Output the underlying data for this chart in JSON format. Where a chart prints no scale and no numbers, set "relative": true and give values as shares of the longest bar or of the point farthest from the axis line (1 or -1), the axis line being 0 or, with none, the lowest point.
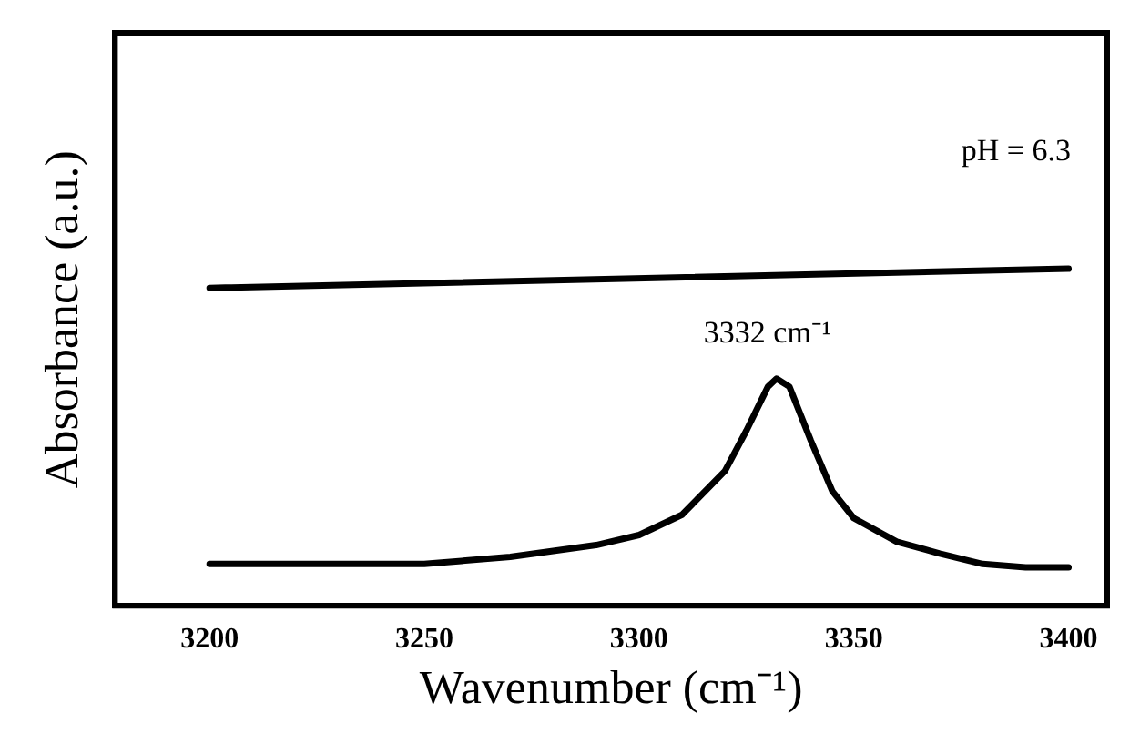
{
  "chart_data": {
    "type": "line",
    "xlabel": "Wavenumber (cm⁻¹)",
    "ylabel": "Absorbance (a.u.)",
    "relative": true,
    "xlim": [
      3178,
      3409
    ],
    "xticks": [
      3200,
      3250,
      3300,
      3350,
      3400
    ],
    "grid": false,
    "legend": false,
    "marker": "none",
    "line_style": "solid",
    "annotations": [
      "pH = 6.3",
      {
        "text": "3332 cm⁻¹",
        "x": 3332,
        "y": 0.674
      }
    ],
    "series": [
      {
        "color": "#000000",
        "x": [
          3200,
          3400
        ],
        "values": [
          0.943,
          1.0
        ]
      },
      {
        "color": "#000000",
        "x": [
          3200,
          3250,
          3270,
          3290,
          3300,
          3310,
          3320,
          3325,
          3330,
          3332,
          3335,
          3340,
          3345,
          3350,
          3360,
          3370,
          3380,
          3390,
          3400
        ],
        "values": [
          0.124,
          0.124,
          0.145,
          0.18,
          0.21,
          0.27,
          0.4,
          0.52,
          0.65,
          0.674,
          0.65,
          0.49,
          0.34,
          0.26,
          0.19,
          0.155,
          0.124,
          0.114,
          0.114
        ]
      }
    ]
  }
}
